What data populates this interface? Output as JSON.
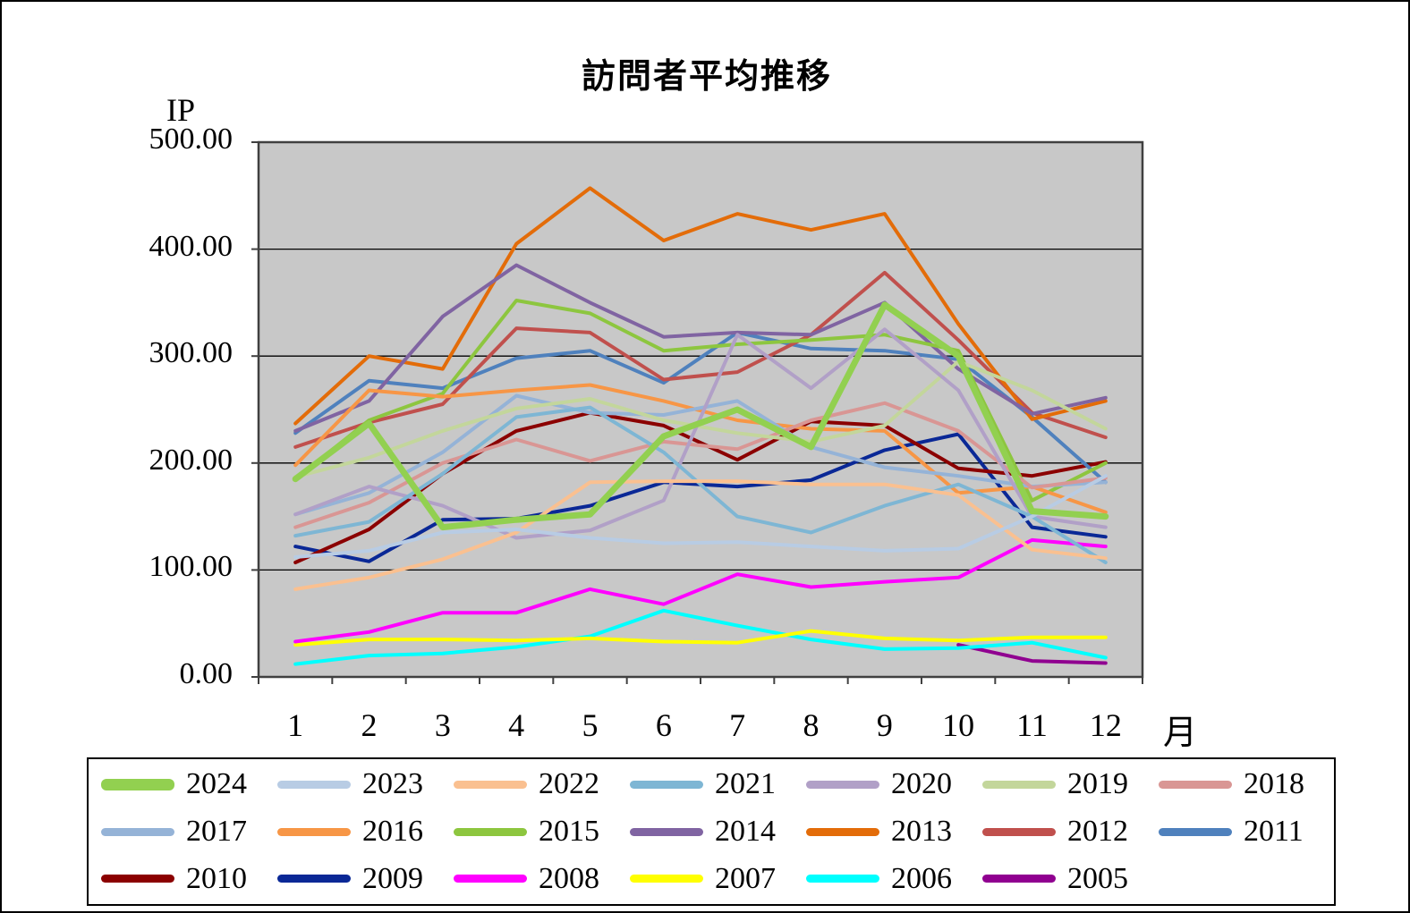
{
  "page": {
    "title": "訪問者平均推移"
  },
  "chart_data": {
    "type": "line",
    "title": "訪問者平均推移",
    "y_axis": {
      "unit_label": "IP",
      "min": 0,
      "max": 500,
      "tick_step": 100,
      "tick_labels": [
        "500.00",
        "400.00",
        "300.00",
        "200.00",
        "100.00",
        "0.00"
      ]
    },
    "x_axis": {
      "unit_label": "月",
      "categories": [
        "1",
        "2",
        "3",
        "4",
        "5",
        "6",
        "7",
        "8",
        "9",
        "10",
        "11",
        "12"
      ]
    },
    "grid": true,
    "legend_position": "bottom",
    "colors": {
      "plot_background": "#C8C8C8",
      "plot_border": "#404040",
      "gridline": "#000000"
    },
    "legend_rows": [
      [
        "2024",
        "2023",
        "2022",
        "2021",
        "2020",
        "2019",
        "2018"
      ],
      [
        "2017",
        "2016",
        "2015",
        "2014",
        "2013",
        "2012",
        "2011"
      ],
      [
        "2010",
        "2009",
        "2008",
        "2007",
        "2006",
        "2005"
      ]
    ],
    "series": [
      {
        "name": "2024",
        "color": "#92D050",
        "width": 7,
        "values": [
          185,
          237,
          140,
          147,
          152,
          225,
          250,
          215,
          348,
          300,
          155,
          150
        ]
      },
      {
        "name": "2023",
        "color": "#B8CCE4",
        "width": 4,
        "values": [
          112,
          118,
          135,
          138,
          130,
          125,
          126,
          122,
          118,
          120,
          150,
          188
        ]
      },
      {
        "name": "2022",
        "color": "#FAC090",
        "width": 4,
        "values": [
          82,
          93,
          110,
          135,
          182,
          183,
          183,
          180,
          180,
          170,
          119,
          111
        ]
      },
      {
        "name": "2021",
        "color": "#7EB6D4",
        "width": 4,
        "values": [
          132,
          145,
          190,
          243,
          252,
          210,
          150,
          135,
          160,
          180,
          150,
          107
        ]
      },
      {
        "name": "2020",
        "color": "#B1A0C7",
        "width": 4,
        "values": [
          152,
          178,
          160,
          130,
          137,
          165,
          320,
          270,
          325,
          268,
          150,
          140
        ]
      },
      {
        "name": "2019",
        "color": "#C3D69B",
        "width": 4,
        "values": [
          187,
          205,
          230,
          251,
          260,
          240,
          228,
          220,
          235,
          295,
          268,
          232
        ]
      },
      {
        "name": "2018",
        "color": "#D99694",
        "width": 4,
        "values": [
          140,
          163,
          200,
          222,
          202,
          220,
          213,
          240,
          256,
          230,
          177,
          186
        ]
      },
      {
        "name": "2017",
        "color": "#95B3D7",
        "width": 4,
        "values": [
          152,
          172,
          210,
          263,
          247,
          245,
          258,
          215,
          196,
          188,
          178,
          182
        ]
      },
      {
        "name": "2016",
        "color": "#F79646",
        "width": 4,
        "values": [
          198,
          268,
          262,
          268,
          273,
          258,
          240,
          232,
          230,
          172,
          178,
          154
        ]
      },
      {
        "name": "2015",
        "color": "#8DC63F",
        "width": 4,
        "values": [
          185,
          240,
          265,
          352,
          340,
          305,
          311,
          315,
          320,
          305,
          165,
          200
        ]
      },
      {
        "name": "2014",
        "color": "#8064A2",
        "width": 4,
        "values": [
          230,
          258,
          337,
          385,
          350,
          318,
          322,
          320,
          350,
          288,
          246,
          261
        ]
      },
      {
        "name": "2013",
        "color": "#E36C09",
        "width": 4,
        "values": [
          237,
          300,
          288,
          405,
          457,
          408,
          433,
          418,
          433,
          330,
          241,
          258
        ]
      },
      {
        "name": "2012",
        "color": "#C0504D",
        "width": 4,
        "values": [
          215,
          238,
          255,
          326,
          322,
          278,
          285,
          320,
          378,
          315,
          247,
          224
        ]
      },
      {
        "name": "2011",
        "color": "#4F81BD",
        "width": 4,
        "values": [
          228,
          277,
          270,
          298,
          305,
          275,
          322,
          307,
          305,
          297,
          243,
          182
        ]
      },
      {
        "name": "2010",
        "color": "#8B0000",
        "width": 4,
        "values": [
          107,
          138,
          190,
          230,
          247,
          235,
          203,
          239,
          235,
          195,
          188,
          201
        ]
      },
      {
        "name": "2009",
        "color": "#0A2896",
        "width": 4,
        "values": [
          122,
          108,
          147,
          148,
          160,
          182,
          178,
          184,
          212,
          227,
          140,
          131
        ]
      },
      {
        "name": "2008",
        "color": "#FF00FF",
        "width": 4,
        "values": [
          33,
          42,
          60,
          60,
          82,
          68,
          96,
          84,
          89,
          93,
          128,
          122
        ]
      },
      {
        "name": "2007",
        "color": "#FFFF00",
        "width": 4,
        "values": [
          30,
          35,
          35,
          34,
          36,
          33,
          32,
          43,
          36,
          34,
          37,
          37
        ]
      },
      {
        "name": "2006",
        "color": "#00FFFF",
        "width": 4,
        "values": [
          12,
          20,
          22,
          28,
          38,
          62,
          48,
          35,
          26,
          27,
          32,
          18
        ]
      },
      {
        "name": "2005",
        "color": "#900090",
        "width": 4,
        "values": [
          null,
          null,
          null,
          null,
          null,
          null,
          null,
          null,
          null,
          30,
          15,
          13
        ]
      }
    ]
  }
}
